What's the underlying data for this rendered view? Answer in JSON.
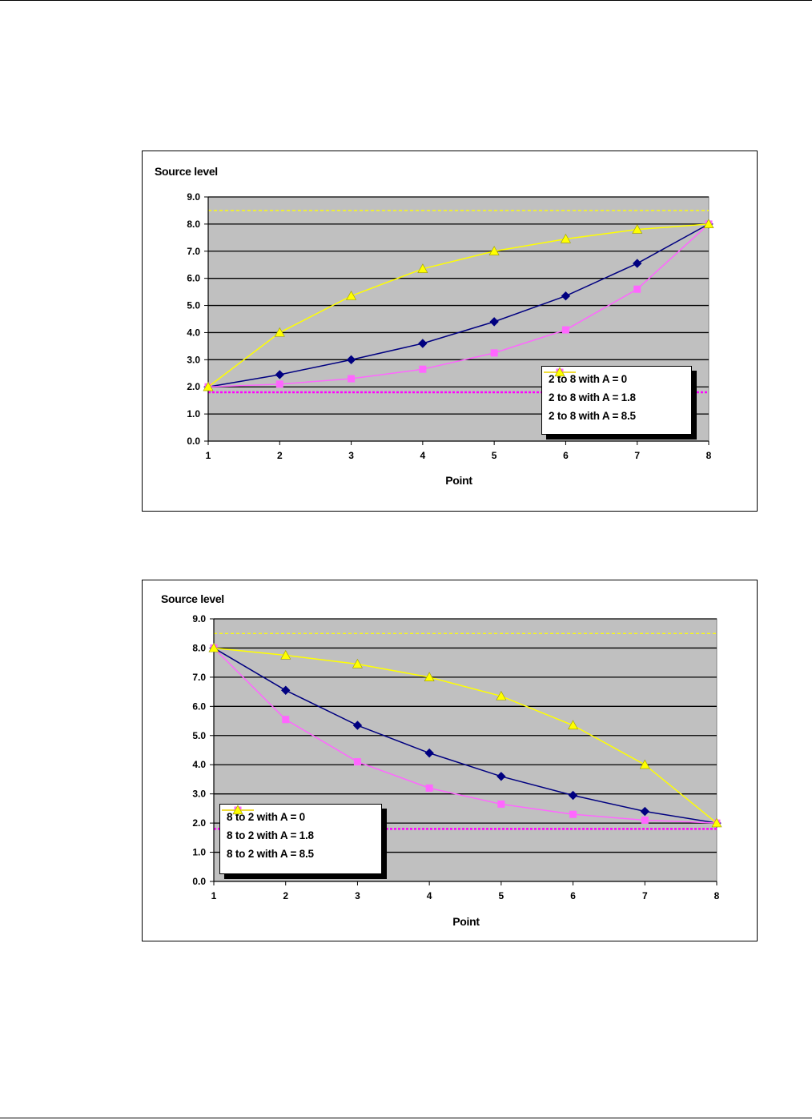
{
  "colors": {
    "plot_bg": "#C0C0C0",
    "navy": "#000080",
    "magenta": "#FF00FF",
    "yellow": "#FFFF00"
  },
  "chart_data": [
    {
      "type": "line",
      "ylabel": "Source level",
      "xlabel": "Point",
      "x": [
        1,
        2,
        3,
        4,
        5,
        6,
        7,
        8
      ],
      "ylim": [
        0,
        9
      ],
      "yticks": [
        "0.0",
        "1.0",
        "2.0",
        "3.0",
        "4.0",
        "5.0",
        "6.0",
        "7.0",
        "8.0",
        "9.0"
      ],
      "xticks": [
        "1",
        "2",
        "3",
        "4",
        "5",
        "6",
        "7",
        "8"
      ],
      "grid": true,
      "legend_position": "bottom-right",
      "series": [
        {
          "name": "2 to 8 with A = 0",
          "color": "#000080",
          "marker": "diamond",
          "values": [
            2.0,
            2.45,
            3.0,
            3.6,
            4.4,
            5.35,
            6.55,
            8.0
          ]
        },
        {
          "name": "2 to 8 with A = 1.8",
          "color": "#FF66FF",
          "marker": "square",
          "values": [
            2.0,
            2.1,
            2.3,
            2.65,
            3.25,
            4.1,
            5.6,
            8.0
          ]
        },
        {
          "name": "2 to 8 with A = 8.5",
          "color": "#FFFF00",
          "marker": "triangle",
          "values": [
            2.0,
            4.0,
            5.35,
            6.35,
            7.0,
            7.45,
            7.8,
            8.0
          ]
        }
      ],
      "reference_lines": [
        {
          "value": 8.5,
          "color": "#FFFF00"
        },
        {
          "value": 1.8,
          "color": "#FF00FF"
        }
      ]
    },
    {
      "type": "line",
      "ylabel": "Source level",
      "xlabel": "Point",
      "x": [
        1,
        2,
        3,
        4,
        5,
        6,
        7,
        8
      ],
      "ylim": [
        0,
        9
      ],
      "yticks": [
        "0.0",
        "1.0",
        "2.0",
        "3.0",
        "4.0",
        "5.0",
        "6.0",
        "7.0",
        "8.0",
        "9.0"
      ],
      "xticks": [
        "1",
        "2",
        "3",
        "4",
        "5",
        "6",
        "7",
        "8"
      ],
      "grid": true,
      "legend_position": "bottom-left",
      "series": [
        {
          "name": "8 to 2 with A = 0",
          "color": "#000080",
          "marker": "diamond",
          "values": [
            8.0,
            6.55,
            5.35,
            4.4,
            3.6,
            2.95,
            2.4,
            2.0
          ]
        },
        {
          "name": "8 to 2 with A = 1.8",
          "color": "#FF66FF",
          "marker": "square",
          "values": [
            8.0,
            5.55,
            4.1,
            3.2,
            2.65,
            2.3,
            2.1,
            2.0
          ]
        },
        {
          "name": "8 to 2 with A = 8.5",
          "color": "#FFFF00",
          "marker": "triangle",
          "values": [
            8.0,
            7.75,
            7.45,
            7.0,
            6.35,
            5.35,
            4.0,
            2.0
          ]
        }
      ],
      "reference_lines": [
        {
          "value": 8.5,
          "color": "#FFFF00"
        },
        {
          "value": 1.8,
          "color": "#FF00FF"
        }
      ]
    }
  ]
}
